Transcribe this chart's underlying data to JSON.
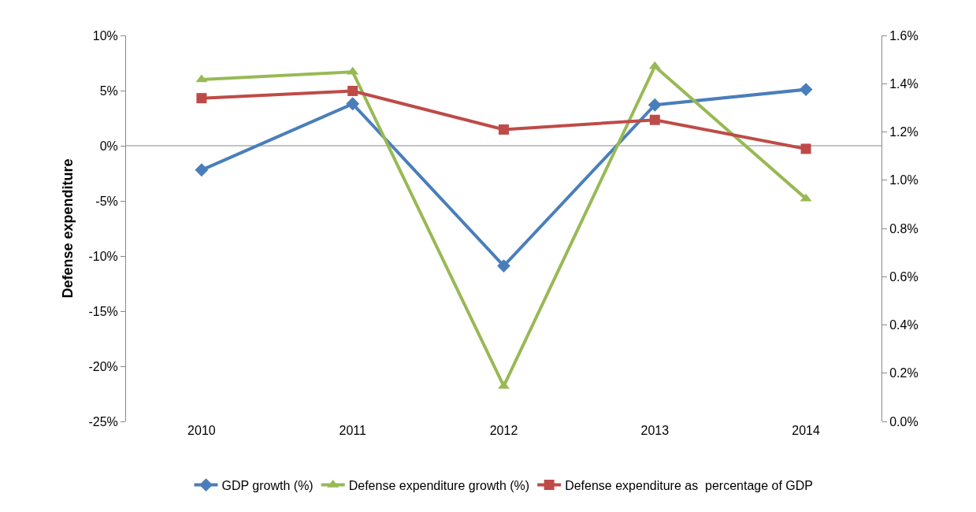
{
  "chart_data": {
    "type": "line",
    "ylabel": "Defense expenditure",
    "categories": [
      "2010",
      "2011",
      "2012",
      "2013",
      "2014"
    ],
    "series": [
      {
        "name": "GDP growth (%)",
        "color": "#4a7ebb",
        "marker": "diamond",
        "values": [
          -2.2,
          3.8,
          -10.9,
          3.7,
          5.1
        ]
      },
      {
        "name": "Defense expenditure growth (%)",
        "color": "#98b954",
        "marker": "triangle",
        "values": [
          6.0,
          6.7,
          -21.8,
          7.2,
          -4.8
        ]
      },
      {
        "name": "Defense expenditure as  percentage of GDP",
        "color": "#be4b48",
        "marker": "square",
        "axis": "y2",
        "values": [
          1.34,
          1.37,
          1.21,
          1.25,
          1.13
        ]
      }
    ],
    "ylim": [
      -25,
      10
    ],
    "yticks": [
      {
        "value": -25,
        "label": "-25%"
      },
      {
        "value": -20,
        "label": "-20%"
      },
      {
        "value": -15,
        "label": "-15%"
      },
      {
        "value": -10,
        "label": "-10%"
      },
      {
        "value": -5,
        "label": "-5%"
      },
      {
        "value": 0,
        "label": "0%"
      },
      {
        "value": 5,
        "label": "5%"
      },
      {
        "value": 10,
        "label": "10%"
      }
    ],
    "y2lim": [
      0,
      1.6
    ],
    "y2ticks": [
      {
        "value": 0,
        "label": "0.0%"
      },
      {
        "value": 0.2,
        "label": "0.2%"
      },
      {
        "value": 0.4,
        "label": "0.4%"
      },
      {
        "value": 0.6,
        "label": "0.6%"
      },
      {
        "value": 0.8,
        "label": "0.8%"
      },
      {
        "value": 1.0,
        "label": "1.0%"
      },
      {
        "value": 1.2,
        "label": "1.2%"
      },
      {
        "value": 1.4,
        "label": "1.4%"
      },
      {
        "value": 1.6,
        "label": "1.6%"
      }
    ],
    "ref_lines": [
      {
        "axis": "y",
        "value": 0,
        "color": "#888888"
      }
    ],
    "grid": false,
    "legend": "bottom",
    "line_style": "solid"
  }
}
